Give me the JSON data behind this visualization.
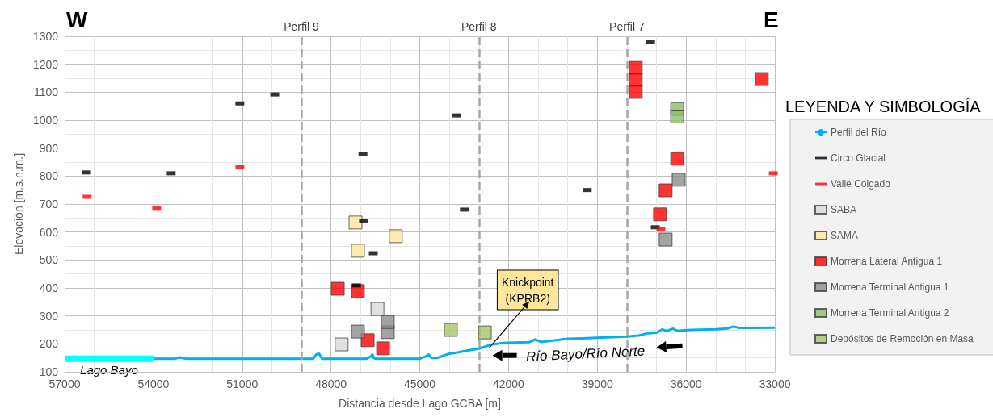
{
  "chart_data": {
    "type": "scatter",
    "xlabel": "Distancia desde Lago GCBA [m]",
    "ylabel": "Elevación [m.s.n.m.]",
    "legend_title": "LEYENDA Y SIMBOLOGÍA",
    "xlim": [
      57000,
      33000
    ],
    "xticks": [
      57000,
      54000,
      51000,
      48000,
      45000,
      42000,
      39000,
      36000,
      33000
    ],
    "ylim": [
      100,
      1300
    ],
    "yticks": [
      100,
      200,
      300,
      400,
      500,
      600,
      700,
      800,
      900,
      1000,
      1100,
      1200,
      1300
    ],
    "grid": true,
    "legend": "right",
    "series": [
      {
        "name": "Perfil del Río",
        "type": "line",
        "color": "#00b0f0",
        "x": [
          54000,
          53300,
          53100,
          52900,
          49800,
          48600,
          48500,
          48400,
          48300,
          46800,
          46650,
          46600,
          46550,
          46500,
          45000,
          44800,
          44700,
          44600,
          44400,
          44200,
          44000,
          43700,
          43300,
          43000,
          42600,
          42200,
          41600,
          41300,
          41100,
          40900,
          40500,
          40000,
          39500,
          39000,
          38500,
          38000,
          37600,
          37300,
          37000,
          36800,
          36650,
          36450,
          36300,
          35800,
          35000,
          34600,
          34400,
          34200,
          33600,
          33000
        ],
        "values": [
          147,
          147,
          152,
          147,
          147,
          147,
          162,
          165,
          147,
          147,
          155,
          162,
          150,
          147,
          147,
          155,
          162,
          150,
          150,
          158,
          165,
          170,
          178,
          183,
          197,
          203,
          205,
          206,
          216,
          207,
          212,
          218,
          220,
          222,
          224,
          226,
          230,
          238,
          240,
          252,
          246,
          255,
          247,
          250,
          252,
          255,
          262,
          257,
          257,
          258
        ]
      },
      {
        "name": "Circo Glacial",
        "color": "#000000",
        "x": [
          56260,
          53400,
          51080,
          49900,
          46920,
          46900,
          46570,
          47140,
          43760,
          43490,
          39340,
          37200,
          37040
        ],
        "values": [
          813,
          810,
          1060,
          1092,
          879,
          640,
          524,
          409,
          1017,
          680,
          750,
          1280,
          617
        ]
      },
      {
        "name": "Valle Colgado",
        "color": "#ff0000",
        "x": [
          56240,
          53890,
          51080,
          36850,
          33050
        ],
        "values": [
          726,
          686,
          833,
          611,
          810
        ]
      },
      {
        "name": "SABA",
        "color": "#d9d9d9",
        "marker": "square",
        "x": [
          47640,
          46430
        ],
        "values": [
          198,
          325
        ]
      },
      {
        "name": "SAMA",
        "color": "#ffe699",
        "marker": "square",
        "x": [
          47170,
          47090,
          45810
        ],
        "values": [
          634,
          533,
          585
        ]
      },
      {
        "name": "Morrena Lateral Antigua 1",
        "color": "#ff0000",
        "marker": "square",
        "x": [
          47770,
          47090,
          46760,
          46240,
          37700,
          37700,
          37700,
          33440,
          36300,
          36690,
          36880
        ],
        "values": [
          397,
          389,
          213,
          184,
          1187,
          1144,
          1101,
          1147,
          862,
          749,
          663
        ]
      },
      {
        "name": "Morrena Terminal Antigua 1",
        "color": "#8c8c8c",
        "marker": "square",
        "x": [
          47090,
          46080,
          46080,
          36250,
          36690
        ],
        "values": [
          244,
          242,
          278,
          787,
          573
        ]
      },
      {
        "name": "Morrena Terminal Antigua 2",
        "color": "#8fbc6a",
        "marker": "square",
        "x": [
          36300,
          36300
        ],
        "values": [
          1040,
          1013
        ]
      },
      {
        "name": "Depósitos de Remoción en Masa",
        "color": "#a9c46c",
        "marker": "square",
        "x": [
          43950,
          42800
        ],
        "values": [
          250,
          241
        ]
      },
      {
        "type": "line",
        "color": "#00ffff",
        "x": [
          57000,
          54000
        ],
        "values": [
          147,
          147
        ]
      }
    ],
    "ref_lines": [
      {
        "axis": "x",
        "value": 49000,
        "label": "Perfil 9",
        "color": "#a6a6a6",
        "line_style": "dashed"
      },
      {
        "axis": "x",
        "value": 43000,
        "label": "Perfil 8",
        "color": "#a6a6a6",
        "line_style": "dashed"
      },
      {
        "axis": "x",
        "value": 38000,
        "label": "Perfil 7",
        "color": "#a6a6a6",
        "line_style": "dashed"
      }
    ],
    "annotations": [
      "W",
      "E",
      {
        "text": "Knickpoint\n(KPRB2)",
        "x": 42660,
        "y": 185
      },
      {
        "text": "Río Bayo/Río Norte",
        "x": 39400,
        "y": 222
      },
      {
        "text": "Lago Bayo",
        "x": 55500,
        "y": 147
      }
    ]
  }
}
